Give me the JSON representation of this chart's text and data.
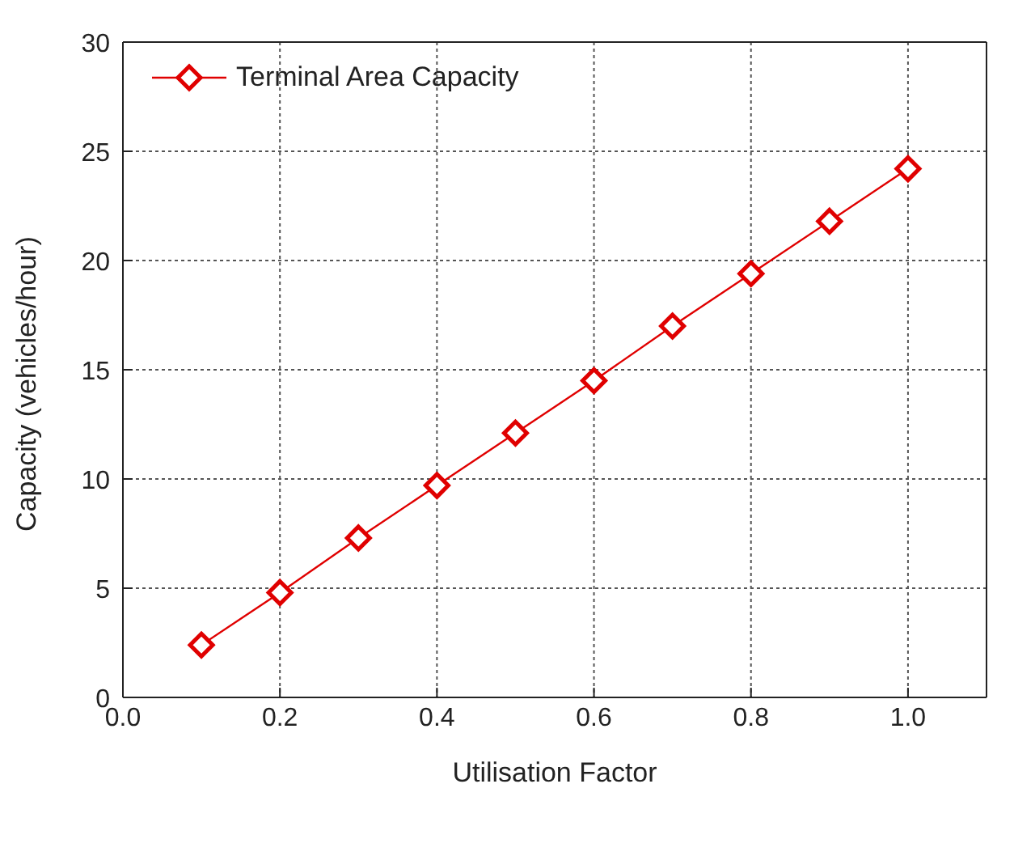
{
  "chart_data": {
    "type": "line",
    "xlabel": "Utilisation Factor",
    "ylabel": "Capacity (vehicles/hour)",
    "x": [
      0.1,
      0.2,
      0.3,
      0.4,
      0.5,
      0.6,
      0.7,
      0.8,
      0.9,
      1.0
    ],
    "series": [
      {
        "name": "Terminal Area Capacity",
        "color": "#e00000",
        "values": [
          2.4,
          4.8,
          7.3,
          9.7,
          12.1,
          14.5,
          17.0,
          19.4,
          21.8,
          24.2
        ]
      }
    ],
    "xlim": [
      0,
      1.1
    ],
    "xticks": [
      {
        "value": 0,
        "label": "0.0"
      },
      {
        "value": 0.2,
        "label": "0.2"
      },
      {
        "value": 0.4,
        "label": "0.4"
      },
      {
        "value": 0.6,
        "label": "0.6"
      },
      {
        "value": 0.8,
        "label": "0.8"
      },
      {
        "value": 1,
        "label": "1.0"
      }
    ],
    "ylim": [
      0,
      30
    ],
    "yticks": [
      0,
      5,
      10,
      15,
      20,
      25,
      30
    ],
    "grid": true,
    "legend": "top left",
    "marker": "diamond",
    "line_style": "solid"
  }
}
